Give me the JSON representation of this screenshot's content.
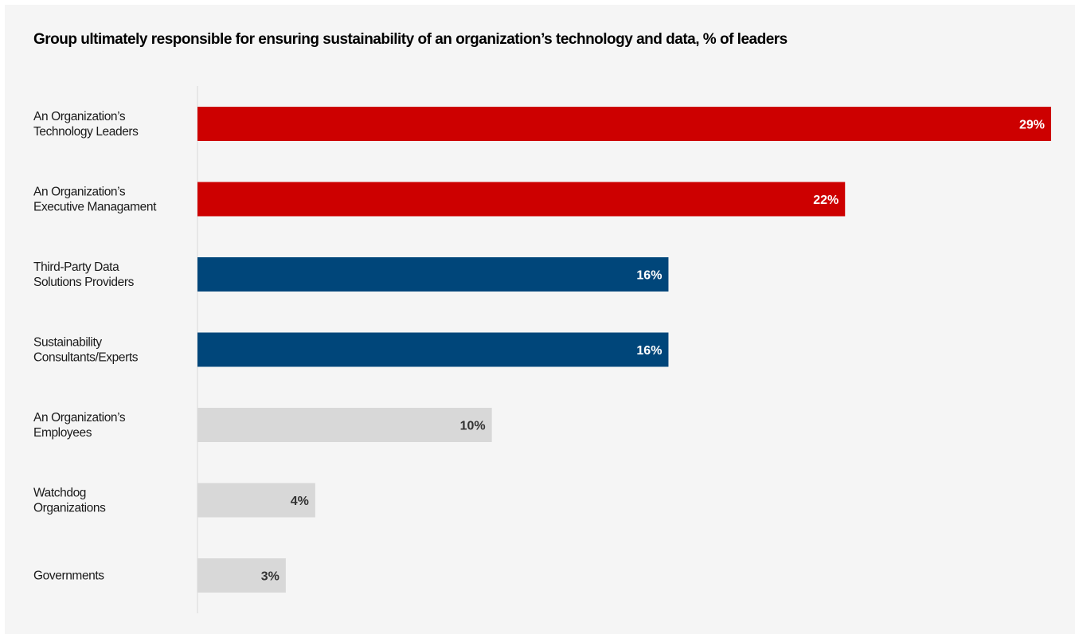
{
  "chart_data": {
    "type": "bar",
    "orientation": "horizontal",
    "title": "Group ultimately responsible for ensuring sustainability of an organization’s technology and data, % of leaders",
    "categories": [
      [
        "An Organization’s",
        "Technology Leaders"
      ],
      [
        "An Organization’s",
        "Executive Managament"
      ],
      [
        "Third-Party Data",
        "Solutions Providers"
      ],
      [
        "Sustainability",
        "Consultants/Experts"
      ],
      [
        "An Organization’s",
        "Employees"
      ],
      [
        "Watchdog",
        "Organizations"
      ],
      [
        "Governments"
      ]
    ],
    "values": [
      29,
      22,
      16,
      16,
      10,
      4,
      3
    ],
    "value_labels": [
      "29%",
      "22%",
      "16%",
      "16%",
      "10%",
      "4%",
      "3%"
    ],
    "xlim": [
      0,
      29
    ],
    "grid": false,
    "colors": {
      "background": "#f5f5f5",
      "axis": "#d9d9d9",
      "bars": [
        "#cd0000",
        "#cd0000",
        "#00467a",
        "#00467a",
        "#d8d8d8",
        "#d8d8d8",
        "#d8d8d8"
      ],
      "labels": [
        "#ffffff",
        "#ffffff",
        "#ffffff",
        "#ffffff",
        "#333333",
        "#333333",
        "#333333"
      ]
    }
  }
}
